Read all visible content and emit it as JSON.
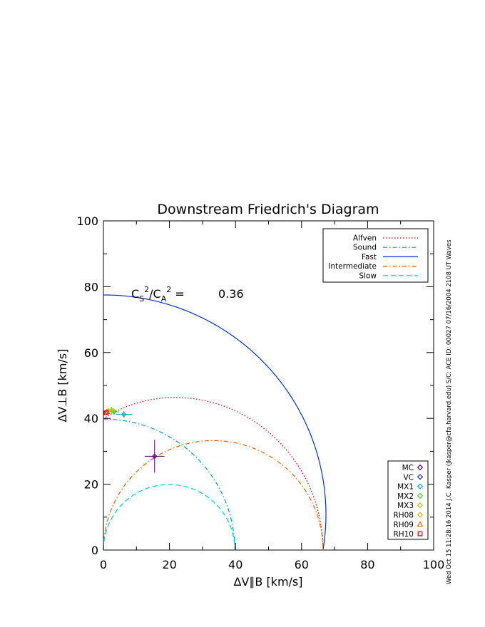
{
  "chart_data": {
    "type": "scatter",
    "title": "Downstream Friedrich's Diagram",
    "xlabel": "ΔV∥B [km/s]",
    "ylabel": "ΔV⊥B [km/s]",
    "xlim": [
      0,
      100
    ],
    "ylim": [
      0,
      100
    ],
    "xticks": [
      "0",
      "20",
      "40",
      "60",
      "80",
      "100"
    ],
    "yticks": [
      "0",
      "20",
      "40",
      "60",
      "80",
      "100"
    ],
    "grid": false,
    "annotation": {
      "text": "C_S²/C_A² =",
      "value": "0.36"
    },
    "parameters": {
      "alfven_speed": 66.5,
      "sound_speed": 39.8,
      "fast_max": 77.5
    },
    "curves": [
      {
        "name": "Alfven",
        "color": "#cc0000",
        "style": "dotted",
        "kind": "alfven"
      },
      {
        "name": "Sound",
        "color": "#0099cc",
        "style": "dashdot",
        "kind": "sound"
      },
      {
        "name": "Fast",
        "color": "#0033cc",
        "style": "solid",
        "kind": "fast"
      },
      {
        "name": "Intermediate",
        "color": "#e06000",
        "style": "dashdot",
        "kind": "intermediate"
      },
      {
        "name": "Slow",
        "color": "#00cccc",
        "style": "dashed",
        "kind": "slow"
      }
    ],
    "solutions": [
      {
        "name": "MC",
        "x": 15.5,
        "y": 28.5,
        "xerr": 3,
        "yerr": 5,
        "color": "#550066",
        "marker": "diamond"
      },
      {
        "name": "VC",
        "x": 1.0,
        "y": 42.0,
        "xerr": 0,
        "yerr": 0,
        "color": "#2233aa",
        "marker": "diamond"
      },
      {
        "name": "MX1",
        "x": 6.2,
        "y": 41.2,
        "xerr": 2.5,
        "yerr": 1,
        "color": "#00aacc",
        "marker": "diamond"
      },
      {
        "name": "MX2",
        "x": 3.2,
        "y": 42.0,
        "xerr": 1.5,
        "yerr": 1,
        "color": "#33cc33",
        "marker": "diamond"
      },
      {
        "name": "MX3",
        "x": 2.5,
        "y": 42.5,
        "xerr": 1.5,
        "yerr": 1,
        "color": "#99cc00",
        "marker": "diamond"
      },
      {
        "name": "RH08",
        "x": 1.5,
        "y": 42.3,
        "xerr": 0.5,
        "yerr": 0.5,
        "color": "#ffaa00",
        "marker": "diamond"
      },
      {
        "name": "RH09",
        "x": 1.2,
        "y": 42.0,
        "xerr": 0,
        "yerr": 0,
        "color": "#ff6600",
        "marker": "triangle"
      },
      {
        "name": "RH10",
        "x": 0.8,
        "y": 41.7,
        "xerr": 0,
        "yerr": 0,
        "color": "#dd0000",
        "marker": "square"
      }
    ]
  },
  "side_text": "Wed Oct 15 11:28:16 2014   J.C. Kasper (jkasper@cfa.harvard.edu)   S/C: ACE ID: 00027 07/16/2004  2108 UT Waves"
}
